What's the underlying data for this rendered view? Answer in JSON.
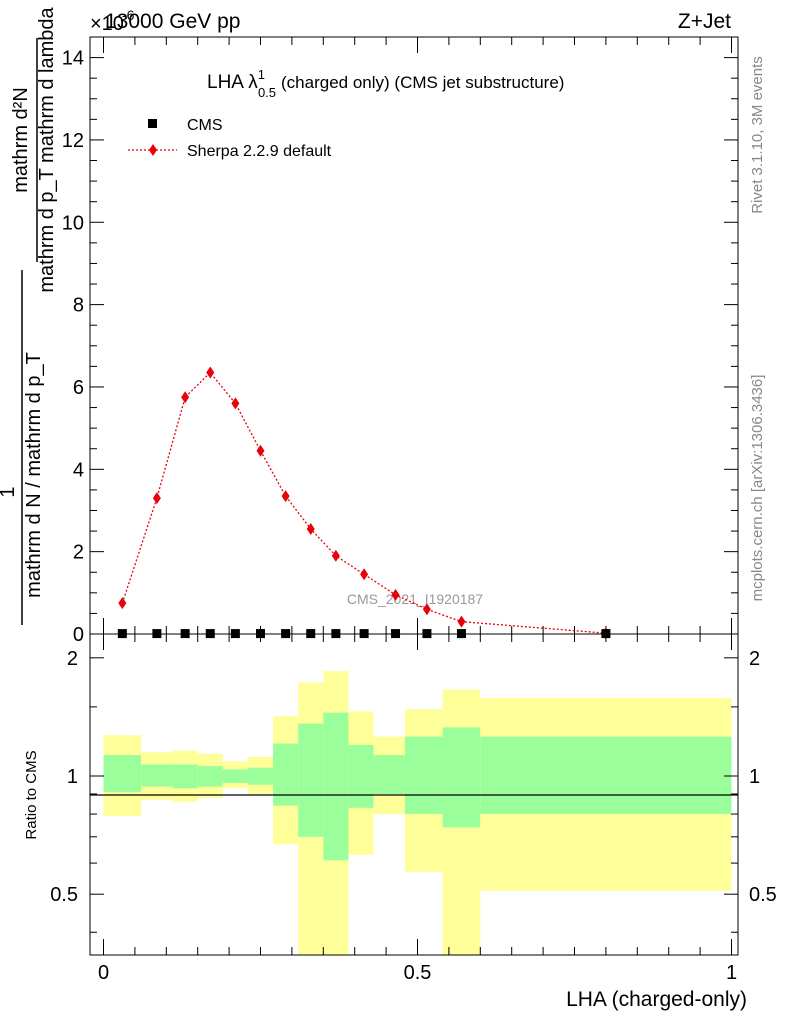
{
  "header": {
    "left": "13000 GeV pp",
    "right": "Z+Jet",
    "exponent_prefix": "×10",
    "exponent_value": "-6"
  },
  "side_labels": {
    "rivet": "Rivet 3.1.10,  3M events",
    "mcplots": "mcplots.cern.ch [arXiv:1306.3436]"
  },
  "watermark": "CMS_2021_I1920187",
  "colors": {
    "mc": "#e8000b",
    "band_inner": "#9aff9a",
    "band_outer": "#ffff99",
    "data": "#000000"
  },
  "chart_data": [
    {
      "type": "line",
      "title_main": "LHA λ",
      "title_sup": "1",
      "title_sub": "0.5",
      "title_rest": "(charged only) (CMS jet substructure)",
      "ylabel": "1 / mathrm d N / mathrm d p_T mathrm d p_T mathrm d lambda · mathrm d²N",
      "ylabel_top_numer": "mathrm d²N",
      "ylabel_top_denom": "mathrm d p_T mathrm d lambda",
      "ylabel_bottom_numer": "1",
      "ylabel_bottom_denom": "mathrm d N / mathrm d p_T",
      "y_scale": "×10^-6",
      "xlim": [
        0,
        1
      ],
      "ylim": [
        0,
        14.5
      ],
      "yticks": [
        0,
        2,
        4,
        6,
        8,
        10,
        12,
        14
      ],
      "legend_position": "top-left",
      "series": [
        {
          "name": "CMS",
          "marker": "square",
          "x": [
            0.03,
            0.085,
            0.13,
            0.17,
            0.21,
            0.25,
            0.29,
            0.33,
            0.37,
            0.415,
            0.465,
            0.515,
            0.57,
            0.8
          ],
          "values": [
            0.01,
            0.01,
            0.01,
            0.01,
            0.01,
            0.01,
            0.01,
            0.01,
            0.01,
            0.01,
            0.01,
            0.01,
            0.01,
            0.01
          ]
        },
        {
          "name": "Sherpa 2.2.9 default",
          "marker": "diamond",
          "x": [
            0.03,
            0.085,
            0.13,
            0.17,
            0.21,
            0.25,
            0.29,
            0.33,
            0.37,
            0.415,
            0.465,
            0.515,
            0.57,
            0.8
          ],
          "values": [
            0.75,
            3.3,
            5.75,
            6.35,
            5.6,
            4.45,
            3.35,
            2.55,
            1.9,
            1.45,
            0.95,
            0.6,
            0.3,
            0.02
          ]
        }
      ]
    },
    {
      "type": "area",
      "ylabel": "Ratio to CMS",
      "xlabel": "LHA (charged-only)",
      "xlim": [
        0,
        1
      ],
      "ylim": [
        0.35,
        2.3
      ],
      "yticks": [
        "0.5",
        "1",
        "2"
      ],
      "xticks": [
        "0",
        "0.5",
        "1"
      ],
      "reference_line": 1,
      "bins": [
        {
          "lo": 0.0,
          "hi": 0.06,
          "inner": [
            0.91,
            1.13
          ],
          "outer": [
            0.79,
            1.27
          ]
        },
        {
          "lo": 0.06,
          "hi": 0.11,
          "inner": [
            0.94,
            1.07
          ],
          "outer": [
            0.87,
            1.15
          ]
        },
        {
          "lo": 0.11,
          "hi": 0.15,
          "inner": [
            0.93,
            1.07
          ],
          "outer": [
            0.86,
            1.16
          ]
        },
        {
          "lo": 0.15,
          "hi": 0.19,
          "inner": [
            0.94,
            1.06
          ],
          "outer": [
            0.88,
            1.14
          ]
        },
        {
          "lo": 0.19,
          "hi": 0.23,
          "inner": [
            0.96,
            1.04
          ],
          "outer": [
            0.93,
            1.09
          ]
        },
        {
          "lo": 0.23,
          "hi": 0.27,
          "inner": [
            0.95,
            1.05
          ],
          "outer": [
            0.9,
            1.12
          ]
        },
        {
          "lo": 0.27,
          "hi": 0.31,
          "inner": [
            0.84,
            1.21
          ],
          "outer": [
            0.67,
            1.42
          ]
        },
        {
          "lo": 0.31,
          "hi": 0.35,
          "inner": [
            0.7,
            1.36
          ],
          "outer": [
            0.35,
            1.73
          ]
        },
        {
          "lo": 0.35,
          "hi": 0.39,
          "inner": [
            0.61,
            1.45
          ],
          "outer": [
            0.35,
            1.85
          ]
        },
        {
          "lo": 0.39,
          "hi": 0.43,
          "inner": [
            0.83,
            1.2
          ],
          "outer": [
            0.63,
            1.46
          ]
        },
        {
          "lo": 0.43,
          "hi": 0.48,
          "inner": [
            0.9,
            1.13
          ],
          "outer": [
            0.8,
            1.26
          ]
        },
        {
          "lo": 0.48,
          "hi": 0.54,
          "inner": [
            0.8,
            1.26
          ],
          "outer": [
            0.57,
            1.48
          ]
        },
        {
          "lo": 0.54,
          "hi": 0.6,
          "inner": [
            0.74,
            1.33
          ],
          "outer": [
            0.35,
            1.66
          ]
        },
        {
          "lo": 0.6,
          "hi": 1.0,
          "inner": [
            0.8,
            1.26
          ],
          "outer": [
            0.51,
            1.58
          ]
        }
      ]
    }
  ]
}
